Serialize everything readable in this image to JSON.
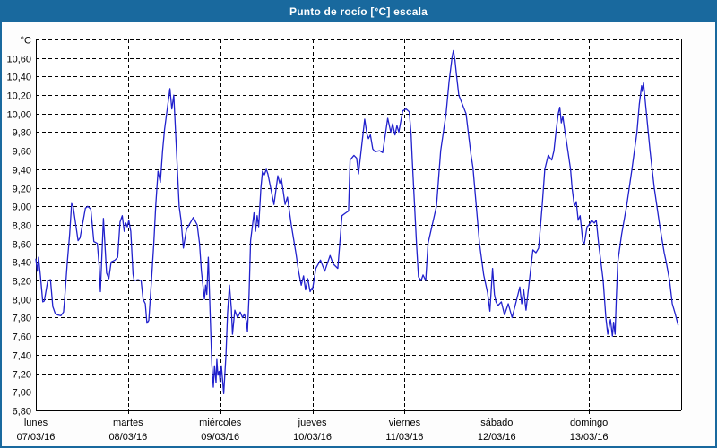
{
  "window": {
    "title": "Punto de rocío [°C] escala"
  },
  "colors": {
    "titlebar_bg": "#19699e",
    "title_text": "#ffffff",
    "outer_border": "#19699e",
    "plot_background": "#ffffff",
    "grid": "#000000",
    "axis_text": "#000000",
    "line": "#2121cd"
  },
  "chart_data": {
    "type": "line",
    "title": "Punto de rocío [°C] escala",
    "unit": "°C",
    "grid": "dashed",
    "legend": "none",
    "y_axis": {
      "min": 6.8,
      "max": 10.8,
      "step": 0.2,
      "decimal_separator": ",",
      "tick_labels_top_to_bottom": [
        "°C",
        "10,60",
        "10,40",
        "10,20",
        "10,00",
        "9,80",
        "9,60",
        "9,40",
        "9,20",
        "9,00",
        "8,80",
        "8,60",
        "8,40",
        "8,20",
        "8,00",
        "7,80",
        "7,60",
        "7,40",
        "7,20",
        "7,00",
        "6,80"
      ]
    },
    "x_axis": {
      "hours_total": 168,
      "hours_per_day": 24,
      "days": [
        {
          "name": "lunes",
          "date": "07/03/16"
        },
        {
          "name": "martes",
          "date": "08/03/16"
        },
        {
          "name": "miércoles",
          "date": "09/03/16"
        },
        {
          "name": "jueves",
          "date": "10/03/16"
        },
        {
          "name": "viernes",
          "date": "11/03/16"
        },
        {
          "name": "sábado",
          "date": "12/03/16"
        },
        {
          "name": "domingo",
          "date": "13/03/16"
        }
      ]
    },
    "series": [
      {
        "name": "Punto de rocío",
        "color": "#2121cd",
        "points": [
          [
            0,
            8.43
          ],
          [
            0.4,
            8.3
          ],
          [
            0.7,
            8.45
          ],
          [
            1.2,
            8.25
          ],
          [
            1.8,
            7.97
          ],
          [
            2.2,
            7.98
          ],
          [
            3.1,
            8.2
          ],
          [
            3.8,
            8.21
          ],
          [
            4.4,
            7.92
          ],
          [
            5,
            7.85
          ],
          [
            5.6,
            7.83
          ],
          [
            6.5,
            7.82
          ],
          [
            7.2,
            7.86
          ],
          [
            7.5,
            8.0
          ],
          [
            8.2,
            8.4
          ],
          [
            8.8,
            8.7
          ],
          [
            9.3,
            9.03
          ],
          [
            9.7,
            9.0
          ],
          [
            11,
            8.63
          ],
          [
            11.5,
            8.66
          ],
          [
            12.9,
            8.98
          ],
          [
            13.5,
            9.0
          ],
          [
            14.3,
            8.97
          ],
          [
            15.1,
            8.62
          ],
          [
            16,
            8.6
          ],
          [
            16.5,
            8.35
          ],
          [
            16.8,
            8.08
          ],
          [
            17.6,
            8.87
          ],
          [
            18.4,
            8.28
          ],
          [
            19,
            8.22
          ],
          [
            19.6,
            8.4
          ],
          [
            20.6,
            8.42
          ],
          [
            21.3,
            8.45
          ],
          [
            21.9,
            8.83
          ],
          [
            22.5,
            8.9
          ],
          [
            23,
            8.73
          ],
          [
            23.4,
            8.82
          ],
          [
            23.8,
            8.78
          ],
          [
            24.2,
            8.85
          ],
          [
            24.7,
            8.73
          ],
          [
            25.3,
            8.27
          ],
          [
            25.6,
            8.2
          ],
          [
            26.6,
            8.21
          ],
          [
            27.4,
            8.2
          ],
          [
            27.9,
            8.0
          ],
          [
            28.5,
            7.95
          ],
          [
            28.9,
            7.74
          ],
          [
            29.4,
            7.77
          ],
          [
            30.1,
            8.2
          ],
          [
            30.7,
            8.6
          ],
          [
            31.2,
            9.0
          ],
          [
            31.8,
            9.38
          ],
          [
            32.4,
            9.26
          ],
          [
            33,
            9.6
          ],
          [
            33.5,
            9.83
          ],
          [
            34.2,
            10.05
          ],
          [
            34.9,
            10.27
          ],
          [
            35.4,
            10.05
          ],
          [
            35.9,
            10.2
          ],
          [
            36.6,
            9.6
          ],
          [
            37.3,
            9.0
          ],
          [
            37.8,
            8.85
          ],
          [
            38.4,
            8.55
          ],
          [
            39.2,
            8.75
          ],
          [
            41,
            8.88
          ],
          [
            42,
            8.8
          ],
          [
            42.6,
            8.6
          ],
          [
            43.1,
            8.3
          ],
          [
            43.9,
            8.0
          ],
          [
            44.2,
            8.15
          ],
          [
            44.5,
            8.05
          ],
          [
            44.9,
            8.45
          ],
          [
            45.4,
            7.8
          ],
          [
            45.8,
            7.3
          ],
          [
            46.2,
            7.05
          ],
          [
            46.5,
            7.28
          ],
          [
            46.9,
            7.1
          ],
          [
            47.1,
            7.35
          ],
          [
            47.4,
            7.18
          ],
          [
            47.7,
            7.22
          ],
          [
            48,
            7.1
          ],
          [
            48.3,
            7.28
          ],
          [
            48.9,
            6.98
          ],
          [
            49.5,
            7.4
          ],
          [
            49.9,
            7.85
          ],
          [
            50.4,
            8.15
          ],
          [
            50.9,
            7.9
          ],
          [
            51.2,
            7.62
          ],
          [
            51.8,
            7.88
          ],
          [
            52.5,
            7.8
          ],
          [
            53.2,
            7.86
          ],
          [
            53.8,
            7.8
          ],
          [
            54.3,
            7.84
          ],
          [
            54.8,
            7.76
          ],
          [
            55.1,
            7.65
          ],
          [
            55.5,
            8.05
          ],
          [
            55.9,
            8.63
          ],
          [
            56.8,
            8.93
          ],
          [
            57.2,
            8.73
          ],
          [
            57.6,
            8.9
          ],
          [
            58,
            8.78
          ],
          [
            58.6,
            9.2
          ],
          [
            59,
            9.38
          ],
          [
            59.5,
            9.34
          ],
          [
            60,
            9.4
          ],
          [
            60.4,
            9.35
          ],
          [
            62,
            9.02
          ],
          [
            63,
            9.33
          ],
          [
            63.5,
            9.25
          ],
          [
            63.9,
            9.3
          ],
          [
            64.9,
            9.02
          ],
          [
            65.5,
            9.1
          ],
          [
            66.5,
            8.8
          ],
          [
            67.7,
            8.5
          ],
          [
            68.4,
            8.3
          ],
          [
            69.1,
            8.15
          ],
          [
            69.7,
            8.25
          ],
          [
            70.2,
            8.1
          ],
          [
            70.8,
            8.22
          ],
          [
            71.4,
            8.08
          ],
          [
            71.9,
            8.12
          ],
          [
            72,
            8.1
          ],
          [
            72.9,
            8.33
          ],
          [
            74.1,
            8.42
          ],
          [
            75.2,
            8.3
          ],
          [
            76.6,
            8.47
          ],
          [
            77.4,
            8.38
          ],
          [
            78.6,
            8.33
          ],
          [
            79.7,
            8.9
          ],
          [
            80.7,
            8.93
          ],
          [
            81.4,
            8.95
          ],
          [
            81.8,
            9.5
          ],
          [
            82.8,
            9.55
          ],
          [
            83.5,
            9.52
          ],
          [
            84,
            9.35
          ],
          [
            85.6,
            9.94
          ],
          [
            86.2,
            9.78
          ],
          [
            86.6,
            9.73
          ],
          [
            87.1,
            9.77
          ],
          [
            87.7,
            9.62
          ],
          [
            88.3,
            9.59
          ],
          [
            89.5,
            9.6
          ],
          [
            90.3,
            9.58
          ],
          [
            91.6,
            9.95
          ],
          [
            92.4,
            9.8
          ],
          [
            92.9,
            9.89
          ],
          [
            93.5,
            9.77
          ],
          [
            94,
            9.87
          ],
          [
            94.5,
            9.8
          ],
          [
            95.5,
            10.03
          ],
          [
            96.4,
            10.05
          ],
          [
            97.2,
            10.02
          ],
          [
            97.7,
            9.78
          ],
          [
            98,
            9.5
          ],
          [
            98.6,
            9.0
          ],
          [
            99.1,
            8.6
          ],
          [
            99.6,
            8.24
          ],
          [
            100.3,
            8.2
          ],
          [
            100.8,
            8.26
          ],
          [
            101.5,
            8.2
          ],
          [
            102.1,
            8.6
          ],
          [
            103.2,
            8.8
          ],
          [
            104.3,
            9.0
          ],
          [
            105.4,
            9.6
          ],
          [
            106.8,
            10.0
          ],
          [
            107.6,
            10.35
          ],
          [
            108.4,
            10.62
          ],
          [
            108.7,
            10.68
          ],
          [
            109.1,
            10.58
          ],
          [
            109.5,
            10.42
          ],
          [
            110.1,
            10.2
          ],
          [
            112,
            10.0
          ],
          [
            113.3,
            9.55
          ],
          [
            113.8,
            9.42
          ],
          [
            115.5,
            8.6
          ],
          [
            116.6,
            8.26
          ],
          [
            117.6,
            8.07
          ],
          [
            118.2,
            7.87
          ],
          [
            118.9,
            8.33
          ],
          [
            119.4,
            8.05
          ],
          [
            119.8,
            7.97
          ],
          [
            120.3,
            7.93
          ],
          [
            121.2,
            7.97
          ],
          [
            122,
            7.83
          ],
          [
            123,
            7.95
          ],
          [
            124,
            7.8
          ],
          [
            126,
            8.13
          ],
          [
            126.5,
            7.95
          ],
          [
            127,
            8.1
          ],
          [
            127.6,
            7.88
          ],
          [
            129.4,
            8.53
          ],
          [
            130.2,
            8.5
          ],
          [
            130.9,
            8.55
          ],
          [
            131.8,
            9.0
          ],
          [
            132.5,
            9.4
          ],
          [
            133.4,
            9.55
          ],
          [
            134.3,
            9.5
          ],
          [
            134.9,
            9.6
          ],
          [
            135.4,
            9.8
          ],
          [
            136,
            10.0
          ],
          [
            136.4,
            10.07
          ],
          [
            136.8,
            9.9
          ],
          [
            137.2,
            9.97
          ],
          [
            137.6,
            9.85
          ],
          [
            138.5,
            9.6
          ],
          [
            139.2,
            9.4
          ],
          [
            139.6,
            9.2
          ],
          [
            140.2,
            9.0
          ],
          [
            140.7,
            9.05
          ],
          [
            141.2,
            8.85
          ],
          [
            141.7,
            8.9
          ],
          [
            142.4,
            8.62
          ],
          [
            142.8,
            8.6
          ],
          [
            143.5,
            8.78
          ],
          [
            144,
            8.8
          ],
          [
            144.7,
            8.85
          ],
          [
            145.4,
            8.82
          ],
          [
            145.9,
            8.85
          ],
          [
            146.5,
            8.6
          ],
          [
            147.7,
            8.2
          ],
          [
            148.4,
            7.8
          ],
          [
            148.9,
            7.62
          ],
          [
            149.6,
            7.78
          ],
          [
            150.1,
            7.6
          ],
          [
            150.4,
            7.75
          ],
          [
            150.8,
            7.62
          ],
          [
            151.1,
            8.0
          ],
          [
            151.5,
            8.4
          ],
          [
            152.5,
            8.7
          ],
          [
            153.8,
            9.0
          ],
          [
            155.2,
            9.4
          ],
          [
            156.5,
            9.8
          ],
          [
            157.1,
            10.1
          ],
          [
            157.7,
            10.3
          ],
          [
            157.9,
            10.24
          ],
          [
            158.2,
            10.33
          ],
          [
            159.2,
            9.9
          ],
          [
            159.9,
            9.6
          ],
          [
            161,
            9.2
          ],
          [
            162.4,
            8.8
          ],
          [
            163.6,
            8.5
          ],
          [
            164.1,
            8.4
          ],
          [
            165,
            8.2
          ],
          [
            165.7,
            7.95
          ],
          [
            166.4,
            7.85
          ],
          [
            167.2,
            7.72
          ]
        ]
      }
    ]
  }
}
